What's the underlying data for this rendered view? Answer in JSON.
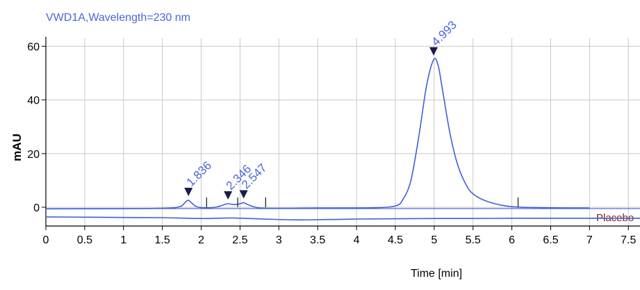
{
  "chart_data": {
    "type": "line",
    "title": "VWD1A,Wavelength=230 nm",
    "xlabel": "Time [min]",
    "ylabel": "mAU",
    "xlim": [
      0,
      7.65
    ],
    "ylim": [
      -7,
      63
    ],
    "x_ticks": [
      0,
      0.5,
      1,
      1.5,
      2,
      2.5,
      3,
      3.5,
      4,
      4.5,
      5,
      5.5,
      6,
      6.5,
      7,
      7.5
    ],
    "x_tick_labels": [
      "0",
      "0.5",
      "1",
      "1.5",
      "2",
      "2.5",
      "3",
      "3.5",
      "4",
      "4.5",
      "5",
      "5.5",
      "6",
      "6.5",
      "7",
      "7.5"
    ],
    "y_ticks": [
      0,
      20,
      40,
      60
    ],
    "y_tick_labels": [
      "0",
      "20",
      "40",
      "60"
    ],
    "grid": true,
    "colors": {
      "trace": "#3f5fd6",
      "annotation": "#4a66d8",
      "title": "#4a66d8",
      "placebo_label": "#8b1a1a",
      "axis": "#000000",
      "grid": "#c8c8c8"
    },
    "series": [
      {
        "name": "sample",
        "x": [
          0,
          1.2,
          1.6,
          1.74,
          1.8,
          1.836,
          1.87,
          1.95,
          2.1,
          2.2,
          2.3,
          2.346,
          2.42,
          2.5,
          2.547,
          2.6,
          2.7,
          2.85,
          3.5,
          4.2,
          4.5,
          4.6,
          4.7,
          4.8,
          4.9,
          4.993,
          5.05,
          5.1,
          5.2,
          5.3,
          5.4,
          5.5,
          5.7,
          6.0,
          6.5,
          7.0
        ],
        "y": [
          -0.6,
          -0.5,
          -0.3,
          0.4,
          2.0,
          2.6,
          1.8,
          0.1,
          -0.2,
          0.1,
          1.0,
          1.3,
          1.0,
          1.3,
          1.7,
          1.0,
          0.0,
          -0.4,
          -0.3,
          -0.2,
          0.5,
          3,
          10,
          26,
          45,
          55,
          53,
          45,
          28,
          16,
          9,
          5,
          2,
          0.2,
          -0.2,
          -0.3
        ]
      },
      {
        "name": "Placebo",
        "x": [
          0,
          0.5,
          1.0,
          1.5,
          2.0,
          2.4,
          2.8,
          3.2,
          3.6,
          4.0,
          4.5,
          5.0,
          5.5,
          6.0,
          6.5,
          7.0,
          7.65
        ],
        "y": [
          -3.6,
          -3.7,
          -3.8,
          -3.9,
          -4.2,
          -4.0,
          -4.4,
          -4.7,
          -4.6,
          -4.4,
          -4.3,
          -4.2,
          -4.2,
          -4.1,
          -4.1,
          -4.1,
          -4.1
        ]
      }
    ],
    "baseline": {
      "x": [
        0,
        7.65
      ],
      "y": [
        -0.5,
        -0.5
      ]
    },
    "peaks": [
      {
        "x": 1.836,
        "y": 2.6,
        "label": "1.836"
      },
      {
        "x": 2.346,
        "y": 1.3,
        "label": "2.346"
      },
      {
        "x": 2.547,
        "y": 1.7,
        "label": "2.547"
      },
      {
        "x": 4.993,
        "y": 55,
        "label": "4.993"
      }
    ],
    "integration_marks": [
      2.07,
      2.47,
      2.83,
      6.08
    ],
    "series_label": "Placebo"
  }
}
